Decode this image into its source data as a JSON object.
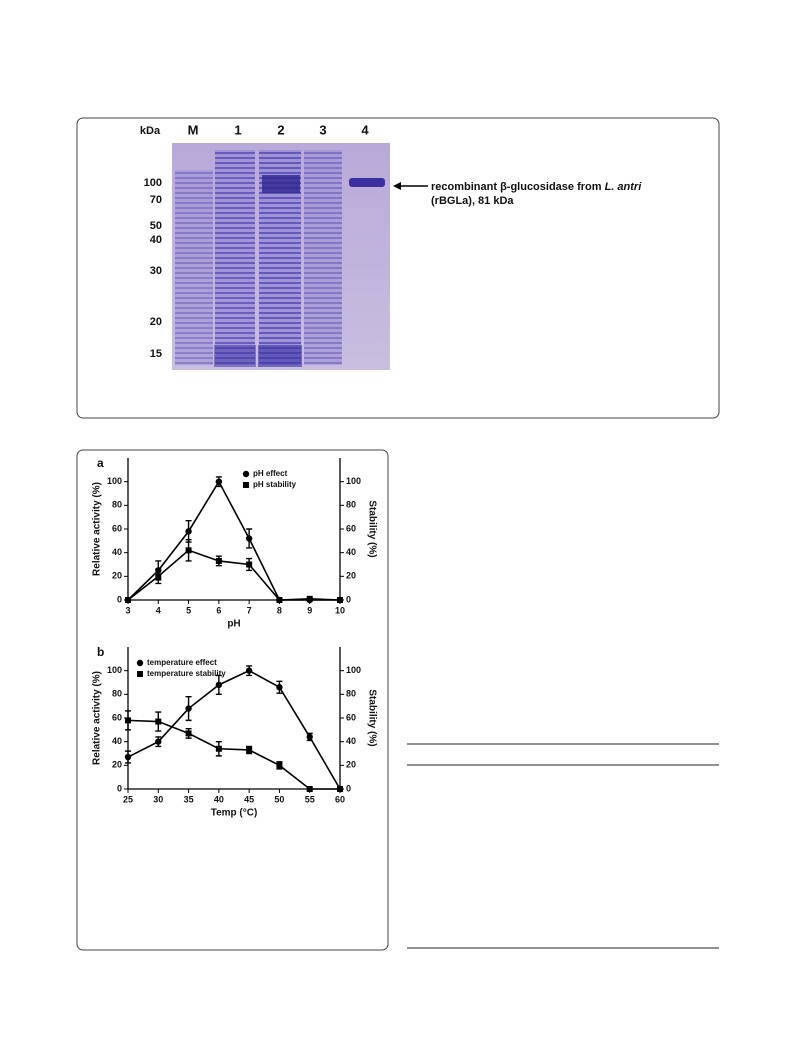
{
  "gel": {
    "unit": "kDa",
    "lanes": [
      "M",
      "1",
      "2",
      "3",
      "4"
    ],
    "markers": [
      "100",
      "70",
      "50",
      "40",
      "30",
      "20",
      "15"
    ],
    "annotation": {
      "line1": "recombinant β-glucosidase from ",
      "italic": "L. antri",
      "line2": "(rBGLa), 81 kDa"
    }
  },
  "chart_data": [
    {
      "type": "line",
      "panel": "a",
      "xlabel": "pH",
      "ylabel": "Relative activity (%)",
      "y2label": "Stability (%)",
      "x": [
        3,
        4,
        5,
        6,
        7,
        8,
        9,
        10
      ],
      "xlim": [
        3,
        10
      ],
      "xticks": [
        3,
        4,
        5,
        6,
        7,
        8,
        9,
        10
      ],
      "ylim": [
        0,
        120
      ],
      "yticks": [
        0,
        20,
        40,
        60,
        80,
        100
      ],
      "y2lim": [
        0,
        120
      ],
      "y2ticks": [
        0,
        20,
        40,
        60,
        80,
        100
      ],
      "legend": "upper right",
      "grid": false,
      "series": [
        {
          "name": "pH effect",
          "color": "#000000",
          "marker": "circle",
          "values": [
            0,
            25,
            58,
            100,
            52,
            0,
            0,
            0
          ],
          "errors": [
            0,
            8,
            9,
            4,
            8,
            0,
            0,
            0
          ]
        },
        {
          "name": "pH stability",
          "color": "#000000",
          "marker": "square",
          "axis": "y2",
          "values": [
            0,
            20,
            42,
            33,
            30,
            0,
            1,
            0
          ],
          "errors": [
            0,
            6,
            9,
            4,
            5,
            0,
            0,
            0
          ]
        }
      ]
    },
    {
      "type": "line",
      "panel": "b",
      "xlabel": "Temp (°C)",
      "ylabel": "Relative activity (%)",
      "y2label": "Stability (%)",
      "x": [
        25,
        30,
        35,
        40,
        45,
        50,
        55,
        60
      ],
      "xlim": [
        25,
        60
      ],
      "xticks": [
        25,
        30,
        35,
        40,
        45,
        50,
        55,
        60
      ],
      "ylim": [
        0,
        120
      ],
      "yticks": [
        0,
        20,
        40,
        60,
        80,
        100
      ],
      "y2lim": [
        0,
        120
      ],
      "y2ticks": [
        0,
        20,
        40,
        60,
        80,
        100
      ],
      "legend": "upper left",
      "grid": false,
      "series": [
        {
          "name": "temperature effect",
          "color": "#000000",
          "marker": "circle",
          "values": [
            27,
            40,
            68,
            88,
            100,
            86,
            44,
            0
          ],
          "errors": [
            5,
            4,
            10,
            8,
            4,
            5,
            3,
            0
          ]
        },
        {
          "name": "temperature stability",
          "color": "#000000",
          "marker": "square",
          "axis": "y2",
          "values": [
            58,
            57,
            47,
            34,
            33,
            20,
            0,
            0
          ],
          "errors": [
            8,
            8,
            4,
            6,
            3,
            3,
            0,
            0
          ]
        }
      ]
    }
  ]
}
